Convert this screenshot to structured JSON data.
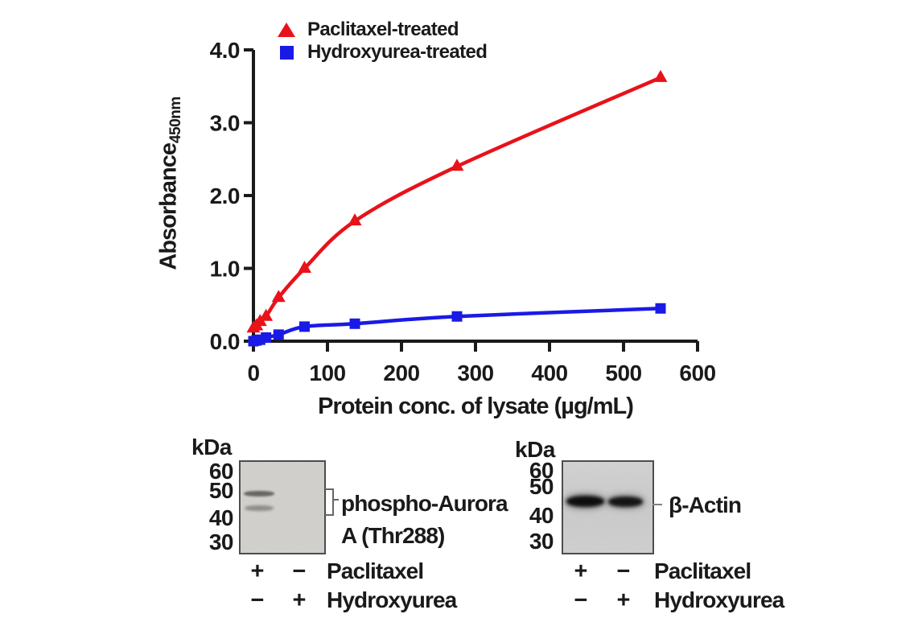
{
  "chart_data": {
    "type": "line",
    "title": "",
    "xlabel": "Protein conc. of lysate (µg/mL)",
    "ylabel": "Absorbance",
    "ylabel_sub": "450nm",
    "xlim": [
      0,
      600
    ],
    "ylim": [
      0,
      4.0
    ],
    "x_ticks": [
      "0",
      "100",
      "200",
      "300",
      "400",
      "500",
      "600"
    ],
    "y_ticks": [
      "0.0",
      "1.0",
      "2.0",
      "3.0",
      "4.0"
    ],
    "grid": false,
    "legend_position": "top-left-inside",
    "axis_color": "#1a1a1a",
    "series": [
      {
        "name": "Paclitaxel-treated",
        "marker": "triangle",
        "color": "#e8121a",
        "x": [
          0,
          4,
          9,
          17,
          34,
          69,
          137,
          275,
          550
        ],
        "y": [
          0.18,
          0.21,
          0.27,
          0.34,
          0.6,
          1.0,
          1.65,
          2.4,
          3.62
        ]
      },
      {
        "name": "Hydroxyurea-treated",
        "marker": "square",
        "color": "#1a1ae6",
        "x": [
          0,
          4,
          9,
          17,
          34,
          69,
          137,
          275,
          550
        ],
        "y": [
          0.0,
          0.01,
          0.02,
          0.05,
          0.09,
          0.2,
          0.24,
          0.34,
          0.45
        ]
      }
    ]
  },
  "blots": {
    "kda_unit": "kDa",
    "mw_markers": [
      "60",
      "50",
      "40",
      "30"
    ],
    "left": {
      "target_line1": "phospho-Aurora",
      "target_line2": "A (Thr288)"
    },
    "right": {
      "target": "β-Actin"
    },
    "lane_rows": [
      {
        "lane1": "+",
        "lane2": "−",
        "treatment": "Paclitaxel"
      },
      {
        "lane1": "−",
        "lane2": "+",
        "treatment": "Hydroxyurea"
      }
    ]
  }
}
